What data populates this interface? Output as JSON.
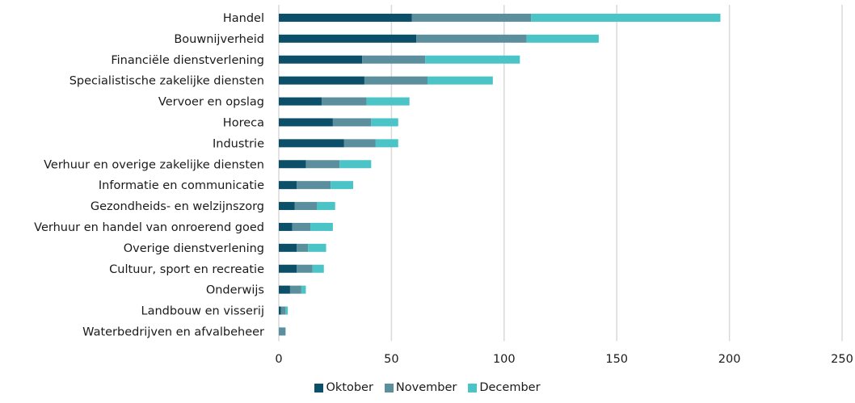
{
  "chart_data": {
    "type": "bar",
    "orientation": "horizontal",
    "stacked": true,
    "categories": [
      "Handel",
      "Bouwnijverheid",
      "Financiële dienstverlening",
      "Specialistische zakelijke diensten",
      "Vervoer en opslag",
      "Horeca",
      "Industrie",
      "Verhuur en overige zakelijke diensten",
      "Informatie en communicatie",
      "Gezondheids- en welzijnszorg",
      "Verhuur en handel van onroerend goed",
      "Overige dienstverlening",
      "Cultuur, sport en recreatie",
      "Onderwijs",
      "Landbouw en visserij",
      "Waterbedrijven en afvalbeheer"
    ],
    "series": [
      {
        "name": "Oktober",
        "color": "#0b5068",
        "values": [
          59,
          61,
          37,
          38,
          19,
          24,
          29,
          12,
          8,
          7,
          6,
          8,
          8,
          5,
          1,
          0
        ]
      },
      {
        "name": "November",
        "color": "#5b8f9d",
        "values": [
          53,
          49,
          28,
          28,
          20,
          17,
          14,
          15,
          15,
          10,
          8,
          5,
          7,
          5,
          2,
          3
        ]
      },
      {
        "name": "December",
        "color": "#4bc4c8",
        "values": [
          84,
          32,
          42,
          29,
          19,
          12,
          10,
          14,
          10,
          8,
          10,
          8,
          5,
          2,
          1,
          0
        ]
      }
    ],
    "xlim": [
      0,
      250
    ],
    "xticks": [
      "0",
      "50",
      "100",
      "150",
      "200",
      "250"
    ],
    "grid": true,
    "legend_position": "bottom"
  }
}
